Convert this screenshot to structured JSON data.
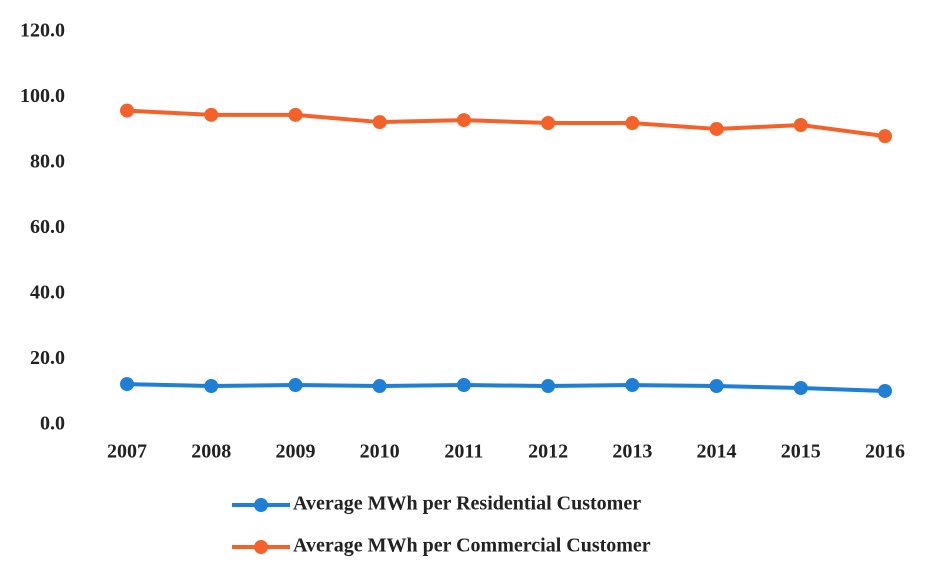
{
  "chart_data": {
    "type": "line",
    "categories": [
      "2007",
      "2008",
      "2009",
      "2010",
      "2011",
      "2012",
      "2013",
      "2014",
      "2015",
      "2016"
    ],
    "series": [
      {
        "name": "Average MWh per Residential Customer",
        "color": "#1f7fd6",
        "values": [
          12.5,
          11.9,
          12.2,
          11.9,
          12.2,
          11.9,
          12.2,
          11.9,
          11.3,
          10.4
        ]
      },
      {
        "name": "Average MWh per Commercial Customer",
        "color": "#f4622a",
        "values": [
          96.0,
          94.7,
          94.7,
          92.5,
          93.1,
          92.2,
          92.2,
          90.4,
          91.6,
          88.2
        ]
      }
    ],
    "ylim": [
      0,
      120
    ],
    "yticks": [
      {
        "value": 0,
        "label": "0.0"
      },
      {
        "value": 20,
        "label": "20.0"
      },
      {
        "value": 40,
        "label": "40.0"
      },
      {
        "value": 60,
        "label": "60.0"
      },
      {
        "value": 80,
        "label": "80.0"
      },
      {
        "value": 100,
        "label": "100.0"
      },
      {
        "value": 120,
        "label": "120.0"
      }
    ],
    "grid": false,
    "legend": "bottom"
  }
}
